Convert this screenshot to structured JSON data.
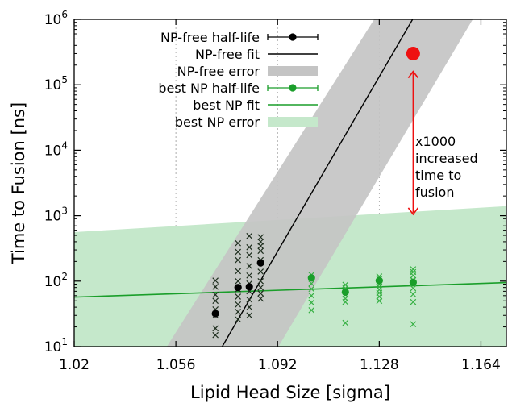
{
  "chart_data": {
    "type": "scatter",
    "xlabel": "Lipid Head Size [sigma]",
    "ylabel": "Time to Fusion [ns]",
    "xlim": [
      1.02,
      1.173
    ],
    "ylim_log10": [
      1,
      6
    ],
    "y_scale": "log",
    "x_ticks": [
      "1.02",
      "1.056",
      "1.092",
      "1.128",
      "1.164"
    ],
    "x_tick_values": [
      1.02,
      1.056,
      1.092,
      1.128,
      1.164
    ],
    "y_ticks": [
      {
        "exp": 1,
        "label_base": "10",
        "label_exp": "1"
      },
      {
        "exp": 2,
        "label_base": "10",
        "label_exp": "2"
      },
      {
        "exp": 3,
        "label_base": "10",
        "label_exp": "3"
      },
      {
        "exp": 4,
        "label_base": "10",
        "label_exp": "4"
      },
      {
        "exp": 5,
        "label_base": "10",
        "label_exp": "5"
      },
      {
        "exp": 6,
        "label_base": "10",
        "label_exp": "6"
      }
    ],
    "grid": "dashed-vertical",
    "legend_placement": "top-left",
    "legend": [
      {
        "label": "NP-free half-life",
        "style": "point-errorbar",
        "color": "#000000"
      },
      {
        "label": "NP-free fit",
        "style": "line",
        "color": "#000000"
      },
      {
        "label": "NP-free error",
        "style": "band",
        "color": "#c4c4c4"
      },
      {
        "label": "best NP half-life",
        "style": "point-errorbar",
        "color": "#1a9e2a"
      },
      {
        "label": "best NP fit",
        "style": "line",
        "color": "#1a9e2a"
      },
      {
        "label": "best NP error",
        "style": "band",
        "color": "#c5e8cb"
      }
    ],
    "series": [
      {
        "name": "NP-free half-life",
        "color": "#000000",
        "points": [
          [
            1.07,
            32
          ],
          [
            1.078,
            80
          ],
          [
            1.082,
            82
          ],
          [
            1.086,
            190
          ]
        ]
      },
      {
        "name": "NP-free fit",
        "color": "#000000",
        "line": [
          [
            1.0724,
            10
          ],
          [
            1.1398,
            1000000
          ]
        ]
      },
      {
        "name": "NP-free error",
        "color": "#c4c4c4",
        "band_polygon": [
          [
            1.0528,
            10
          ],
          [
            1.1262,
            1000000
          ],
          [
            1.1611,
            1000000
          ],
          [
            1.0923,
            10
          ]
        ]
      },
      {
        "name": "best NP half-life",
        "color": "#1a9e2a",
        "points": [
          [
            1.104,
            112
          ],
          [
            1.116,
            68
          ],
          [
            1.128,
            102
          ],
          [
            1.14,
            96
          ]
        ]
      },
      {
        "name": "best NP fit",
        "color": "#1a9e2a",
        "line": [
          [
            1.02,
            57
          ],
          [
            1.173,
            95
          ]
        ]
      },
      {
        "name": "best NP error",
        "color": "#c5e8cb",
        "band_polygon": [
          [
            1.02,
            10
          ],
          [
            1.173,
            10
          ],
          [
            1.173,
            1400
          ],
          [
            1.02,
            560
          ]
        ]
      },
      {
        "name": "NP-free samples",
        "color": "#000000",
        "marker": "x",
        "points": [
          [
            1.07,
            15
          ],
          [
            1.07,
            19
          ],
          [
            1.07,
            30
          ],
          [
            1.07,
            37
          ],
          [
            1.07,
            50
          ],
          [
            1.07,
            62
          ],
          [
            1.07,
            82
          ],
          [
            1.07,
            102
          ],
          [
            1.078,
            26
          ],
          [
            1.078,
            34
          ],
          [
            1.078,
            44
          ],
          [
            1.078,
            58
          ],
          [
            1.078,
            75
          ],
          [
            1.078,
            100
          ],
          [
            1.078,
            142
          ],
          [
            1.078,
            210
          ],
          [
            1.078,
            280
          ],
          [
            1.078,
            380
          ],
          [
            1.082,
            30
          ],
          [
            1.082,
            40
          ],
          [
            1.082,
            52
          ],
          [
            1.082,
            70
          ],
          [
            1.082,
            92
          ],
          [
            1.082,
            122
          ],
          [
            1.082,
            170
          ],
          [
            1.082,
            250
          ],
          [
            1.082,
            330
          ],
          [
            1.082,
            490
          ],
          [
            1.086,
            54
          ],
          [
            1.086,
            65
          ],
          [
            1.086,
            80
          ],
          [
            1.086,
            100
          ],
          [
            1.086,
            140
          ],
          [
            1.086,
            210
          ],
          [
            1.086,
            290
          ],
          [
            1.086,
            345
          ],
          [
            1.086,
            400
          ],
          [
            1.086,
            470
          ]
        ]
      },
      {
        "name": "best NP samples",
        "color": "#1a9e2a",
        "marker": "x",
        "points": [
          [
            1.104,
            36
          ],
          [
            1.104,
            47
          ],
          [
            1.104,
            60
          ],
          [
            1.104,
            76
          ],
          [
            1.104,
            92
          ],
          [
            1.104,
            108
          ],
          [
            1.104,
            125
          ],
          [
            1.116,
            23
          ],
          [
            1.116,
            48
          ],
          [
            1.116,
            54
          ],
          [
            1.116,
            62
          ],
          [
            1.116,
            70
          ],
          [
            1.116,
            78
          ],
          [
            1.116,
            88
          ],
          [
            1.128,
            50
          ],
          [
            1.128,
            58
          ],
          [
            1.128,
            66
          ],
          [
            1.128,
            74
          ],
          [
            1.128,
            82
          ],
          [
            1.128,
            90
          ],
          [
            1.128,
            98
          ],
          [
            1.128,
            108
          ],
          [
            1.128,
            118
          ],
          [
            1.14,
            22
          ],
          [
            1.14,
            48
          ],
          [
            1.14,
            63
          ],
          [
            1.14,
            78
          ],
          [
            1.14,
            92
          ],
          [
            1.14,
            104
          ],
          [
            1.14,
            122
          ],
          [
            1.14,
            138
          ],
          [
            1.14,
            152
          ]
        ]
      }
    ],
    "highlight_point": {
      "x": 1.14,
      "y": 300000,
      "color": "#ee1111"
    },
    "annotation": {
      "lines": [
        "x1000",
        "increased",
        "time to",
        "fusion"
      ],
      "arrow_color": "#ee1111",
      "arrow_from_y": 1050,
      "arrow_to_y": 160000,
      "arrow_x": 1.14
    }
  }
}
